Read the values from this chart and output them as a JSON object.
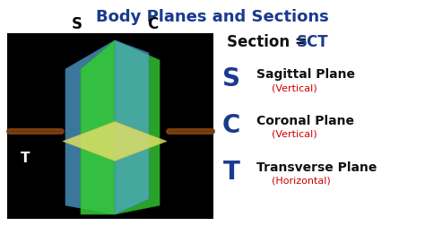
{
  "title": "Body Planes and Sections",
  "title_color": "#1a3a8f",
  "title_fontsize": 13,
  "bg_color": "#ffffff",
  "diagram_bg": "#000000",
  "section_label": "Section = ",
  "section_sct": "SCT",
  "section_color": "#111111",
  "section_sct_color": "#1a3a8f",
  "section_fontsize": 12,
  "legend_items": [
    {
      "letter": "S",
      "name": "Sagittal Plane",
      "sub": "(Vertical)",
      "letter_color": "#1a3a8f",
      "name_color": "#111111",
      "sub_color": "#cc0000"
    },
    {
      "letter": "C",
      "name": "Coronal Plane",
      "sub": "(Vertical)",
      "letter_color": "#1a3a8f",
      "name_color": "#111111",
      "sub_color": "#cc0000"
    },
    {
      "letter": "T",
      "name": "Transverse Plane",
      "sub": "(Horizontal)",
      "letter_color": "#1a3a8f",
      "name_color": "#111111",
      "sub_color": "#cc0000"
    }
  ],
  "s_label": "S",
  "c_label": "C",
  "t_label": "T",
  "label_color_white": "#ffffff",
  "label_color_black": "#000000",
  "green_face": "#44dd44",
  "blue_face": "#55aadd",
  "yellow_face": "#e0e066"
}
